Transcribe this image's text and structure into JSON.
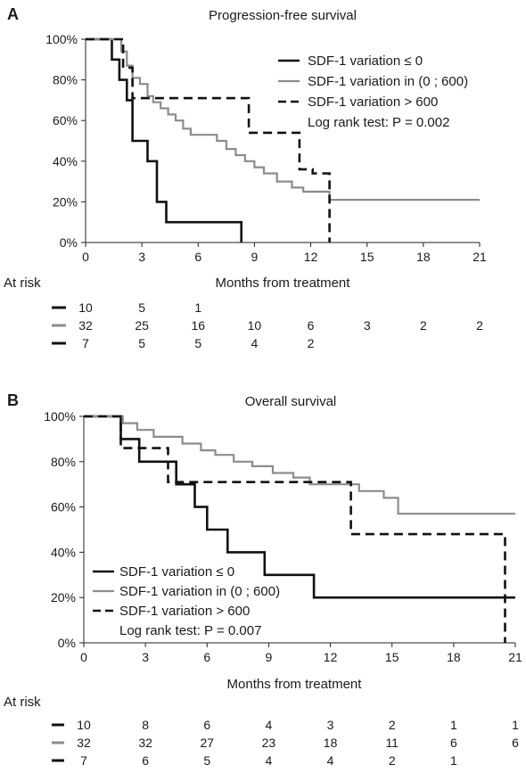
{
  "chart_data": [
    {
      "type": "line",
      "panel": "A",
      "title": "Progression-free survival",
      "xlabel": "Months from treatment",
      "ylabel": "",
      "xlim": [
        0,
        21
      ],
      "ylim": [
        0,
        100
      ],
      "xticks": [
        "0",
        "3",
        "6",
        "9",
        "12",
        "15",
        "18",
        "21"
      ],
      "yticks": [
        "0%",
        "20%",
        "40%",
        "60%",
        "80%",
        "100%"
      ],
      "legend_position": "top-right",
      "series": [
        {
          "name": "SDF-1 variation ≤ 0",
          "color": "#111111",
          "dash": "solid",
          "width": 2.6,
          "x": [
            0,
            1.4,
            1.4,
            1.8,
            1.8,
            2.2,
            2.2,
            2.5,
            2.5,
            3.3,
            3.3,
            3.8,
            3.8,
            4.3,
            4.3,
            5.3,
            5.3,
            8.3,
            8.3
          ],
          "y": [
            100,
            100,
            90,
            90,
            80,
            80,
            70,
            70,
            50,
            50,
            40,
            40,
            20,
            20,
            10,
            10,
            10,
            10,
            0
          ]
        },
        {
          "name": "SDF-1 variation in (0 ; 600)",
          "color": "#8c8c8c",
          "dash": "solid",
          "width": 2.2,
          "x": [
            0,
            1.9,
            1.9,
            2.2,
            2.2,
            2.5,
            2.5,
            2.9,
            2.9,
            3.3,
            3.3,
            3.6,
            3.6,
            4.0,
            4.0,
            4.4,
            4.4,
            4.8,
            4.8,
            5.2,
            5.2,
            5.6,
            5.6,
            7.0,
            7.0,
            7.5,
            7.5,
            8.0,
            8.0,
            8.5,
            8.5,
            9.0,
            9.0,
            9.5,
            9.5,
            10.2,
            10.2,
            11.0,
            11.0,
            11.6,
            11.6,
            12.5,
            12.5,
            13.0,
            13.0,
            14.5,
            14.5,
            21.0
          ],
          "y": [
            100,
            100,
            94,
            94,
            87,
            87,
            81,
            81,
            78,
            78,
            72,
            72,
            69,
            69,
            66,
            66,
            63,
            63,
            60,
            60,
            56,
            56,
            53,
            53,
            50,
            50,
            46,
            46,
            43,
            43,
            40,
            40,
            37,
            37,
            34,
            34,
            30,
            30,
            27,
            27,
            25,
            25,
            25,
            25,
            21,
            21,
            21,
            21
          ]
        },
        {
          "name": "SDF-1 variation > 600",
          "color": "#111111",
          "dash": "dashed",
          "width": 2.6,
          "x": [
            0,
            2.0,
            2.0,
            2.5,
            2.5,
            8.7,
            8.7,
            11.4,
            11.4,
            12.1,
            12.1,
            13.0,
            13.0
          ],
          "y": [
            100,
            100,
            86,
            86,
            71,
            71,
            54,
            54,
            36,
            36,
            34,
            34,
            0
          ]
        }
      ],
      "annotation": "Log rank test: P = 0.002",
      "at_risk_label": "At risk",
      "at_risk": [
        [
          "10",
          "5",
          "1",
          "",
          "",
          "",
          "",
          ""
        ],
        [
          "32",
          "25",
          "16",
          "10",
          "6",
          "3",
          "2",
          "2"
        ],
        [
          "7",
          "5",
          "5",
          "4",
          "2",
          "",
          "",
          ""
        ]
      ]
    },
    {
      "type": "line",
      "panel": "B",
      "title": "Overall survival",
      "xlabel": "Months from treatment",
      "ylabel": "",
      "xlim": [
        0,
        21
      ],
      "ylim": [
        0,
        100
      ],
      "xticks": [
        "0",
        "3",
        "6",
        "9",
        "12",
        "15",
        "18",
        "21"
      ],
      "yticks": [
        "0%",
        "20%",
        "40%",
        "60%",
        "80%",
        "100%"
      ],
      "legend_position": "bottom-left",
      "series": [
        {
          "name": "SDF-1 variation ≤ 0",
          "color": "#111111",
          "dash": "solid",
          "width": 2.6,
          "x": [
            0,
            1.8,
            1.8,
            2.7,
            2.7,
            4.5,
            4.5,
            5.4,
            5.4,
            6.0,
            6.0,
            7.0,
            7.0,
            8.8,
            8.8,
            11.2,
            11.2,
            13.0,
            13.0,
            21.0
          ],
          "y": [
            100,
            100,
            90,
            90,
            80,
            80,
            70,
            70,
            60,
            60,
            50,
            50,
            40,
            40,
            30,
            30,
            20,
            20,
            20,
            20
          ]
        },
        {
          "name": "SDF-1 variation in (0 ; 600)",
          "color": "#8c8c8c",
          "dash": "solid",
          "width": 2.2,
          "x": [
            0,
            1.9,
            1.9,
            2.6,
            2.6,
            3.4,
            3.4,
            4.8,
            4.8,
            5.7,
            5.7,
            6.4,
            6.4,
            7.3,
            7.3,
            8.2,
            8.2,
            9.2,
            9.2,
            10.2,
            10.2,
            11.0,
            11.0,
            12.0,
            12.0,
            13.4,
            13.4,
            14.6,
            14.6,
            15.3,
            15.3,
            16.2,
            16.2,
            21.0
          ],
          "y": [
            100,
            100,
            97,
            97,
            94,
            94,
            91,
            91,
            88,
            88,
            85,
            85,
            83,
            83,
            80,
            80,
            78,
            78,
            75,
            75,
            73,
            73,
            70,
            70,
            70,
            70,
            67,
            67,
            64,
            64,
            57,
            57,
            57,
            57
          ]
        },
        {
          "name": "SDF-1 variation > 600",
          "color": "#111111",
          "dash": "dashed",
          "width": 2.6,
          "x": [
            0,
            1.8,
            1.8,
            4.1,
            4.1,
            13.0,
            13.0,
            20.5,
            20.5
          ],
          "y": [
            100,
            100,
            86,
            86,
            71,
            71,
            48,
            48,
            0
          ]
        }
      ],
      "annotation": "Log rank test: P = 0.007",
      "at_risk_label": "At risk",
      "at_risk": [
        [
          "10",
          "8",
          "6",
          "4",
          "3",
          "2",
          "1",
          "1"
        ],
        [
          "32",
          "32",
          "27",
          "23",
          "18",
          "11",
          "6",
          "6"
        ],
        [
          "7",
          "6",
          "5",
          "4",
          "4",
          "2",
          "1",
          ""
        ]
      ]
    }
  ]
}
